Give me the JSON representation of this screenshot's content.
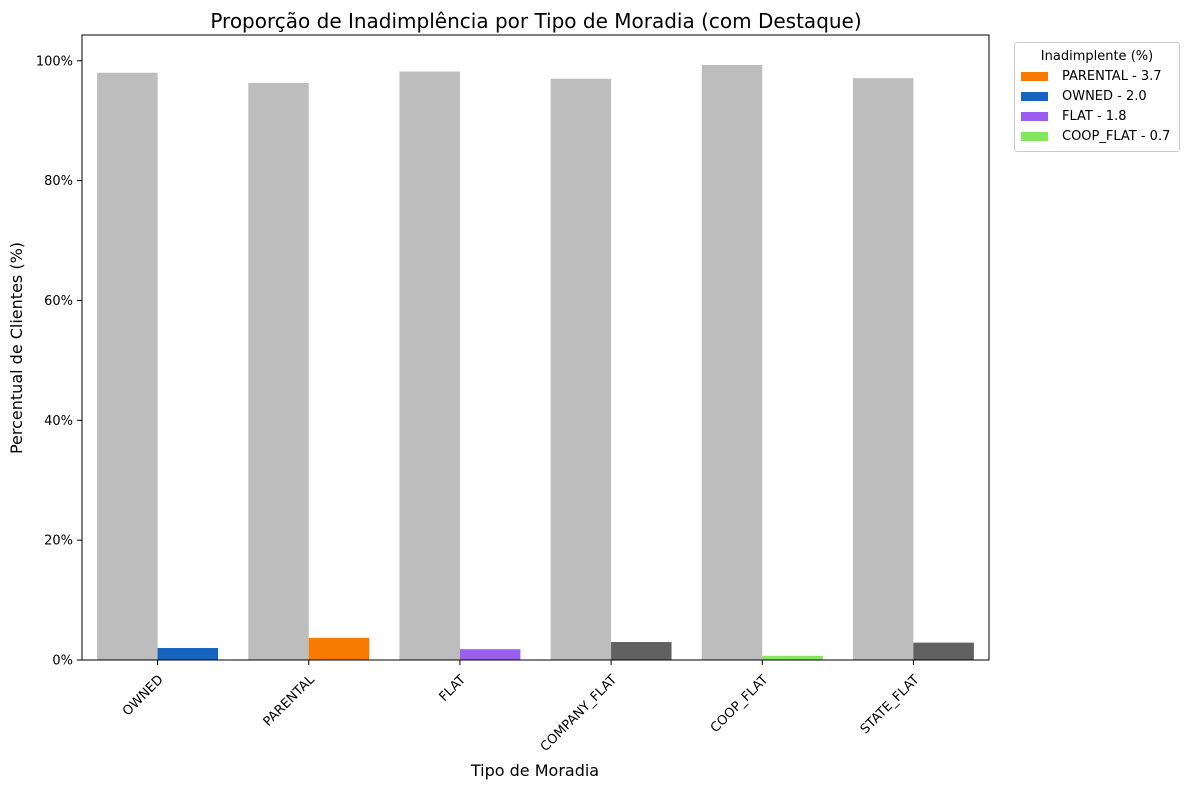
{
  "chart_data": {
    "type": "bar",
    "title": "Proporção de Inadimplência por Tipo de Moradia (com Destaque)",
    "xlabel": "Tipo de Moradia",
    "ylabel": "Percentual de Clientes (%)",
    "ylim": [
      0,
      104.3
    ],
    "yticks": [
      0,
      20,
      40,
      60,
      80,
      100
    ],
    "ytick_labels": [
      "0%",
      "20%",
      "40%",
      "60%",
      "80%",
      "100%"
    ],
    "categories": [
      "OWNED",
      "PARENTAL",
      "FLAT",
      "COMPANY_FLAT",
      "COOP_FLAT",
      "STATE_FLAT"
    ],
    "series": [
      {
        "values": [
          98.0,
          96.3,
          98.2,
          97.0,
          99.3,
          97.1
        ],
        "color": "#bdbdbd"
      },
      {
        "values": [
          2.0,
          3.7,
          1.8,
          3.0,
          0.7,
          2.9
        ],
        "colors": [
          "#1565c0",
          "#f77b00",
          "#9a5ded",
          "#616161",
          "#84e85e",
          "#616161"
        ]
      }
    ],
    "legend": {
      "title": "Inadimplente (%)",
      "position": "outside-top-right",
      "entries": [
        {
          "label": "PARENTAL - 3.7",
          "color": "#f77b00"
        },
        {
          "label": "OWNED - 2.0",
          "color": "#1565c0"
        },
        {
          "label": "FLAT - 1.8",
          "color": "#9a5ded"
        },
        {
          "label": "COOP_FLAT - 0.7",
          "color": "#84e85e"
        }
      ]
    },
    "grid": false
  }
}
